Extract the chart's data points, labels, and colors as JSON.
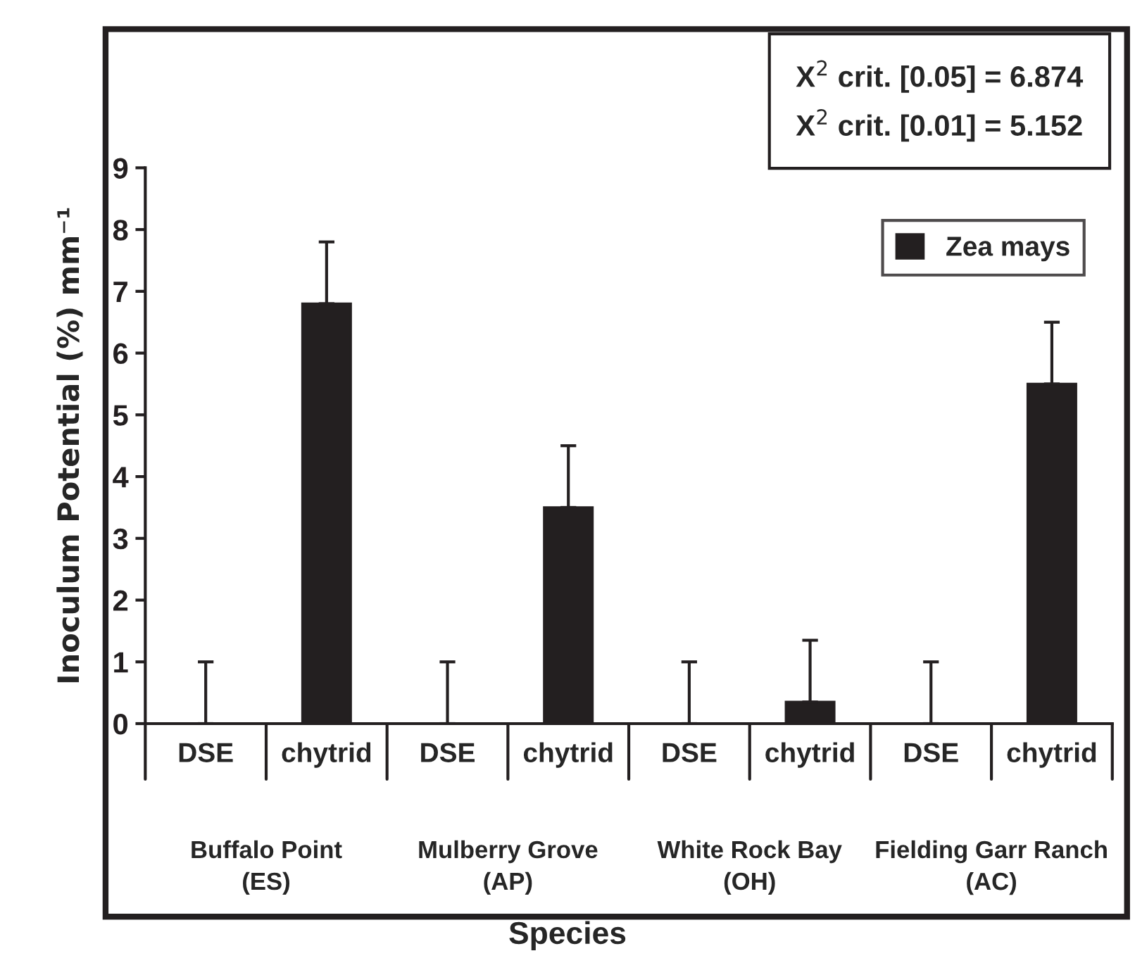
{
  "chart_data": {
    "type": "bar",
    "xlabel": "Species",
    "ylabel": "Inoculum Potential (%) mm⁻¹",
    "categories": [
      "DSE",
      "chytrid",
      "DSE",
      "chytrid",
      "DSE",
      "chytrid",
      "DSE",
      "chytrid"
    ],
    "series": [
      {
        "name": "Zea mays",
        "color": "#231f20",
        "values": [
          0,
          6.8,
          0,
          3.5,
          0,
          0.35,
          0,
          5.5
        ],
        "errors": [
          [
            0,
            1
          ],
          [
            6.8,
            7.8
          ],
          [
            0,
            1
          ],
          [
            3.5,
            4.5
          ],
          [
            0,
            1
          ],
          [
            0.35,
            1.35
          ],
          [
            0,
            1
          ],
          [
            5.5,
            6.5
          ]
        ]
      }
    ],
    "ylim": [
      0,
      9
    ],
    "yticks": [
      0,
      1,
      2,
      3,
      4,
      5,
      6,
      7,
      8,
      9
    ],
    "annotations": [
      "X$^{2}$ crit. [0.05] = 6.874\nX$^{2}$ crit. [0.01] = 5.152",
      "Buffalo Point\n(ES)",
      "Mulberry Grove\n(AP)",
      "White Rock Bay\n(OH)",
      "Fielding Garr Ranch\n(AC)"
    ],
    "legend": "top right",
    "grid": false
  }
}
